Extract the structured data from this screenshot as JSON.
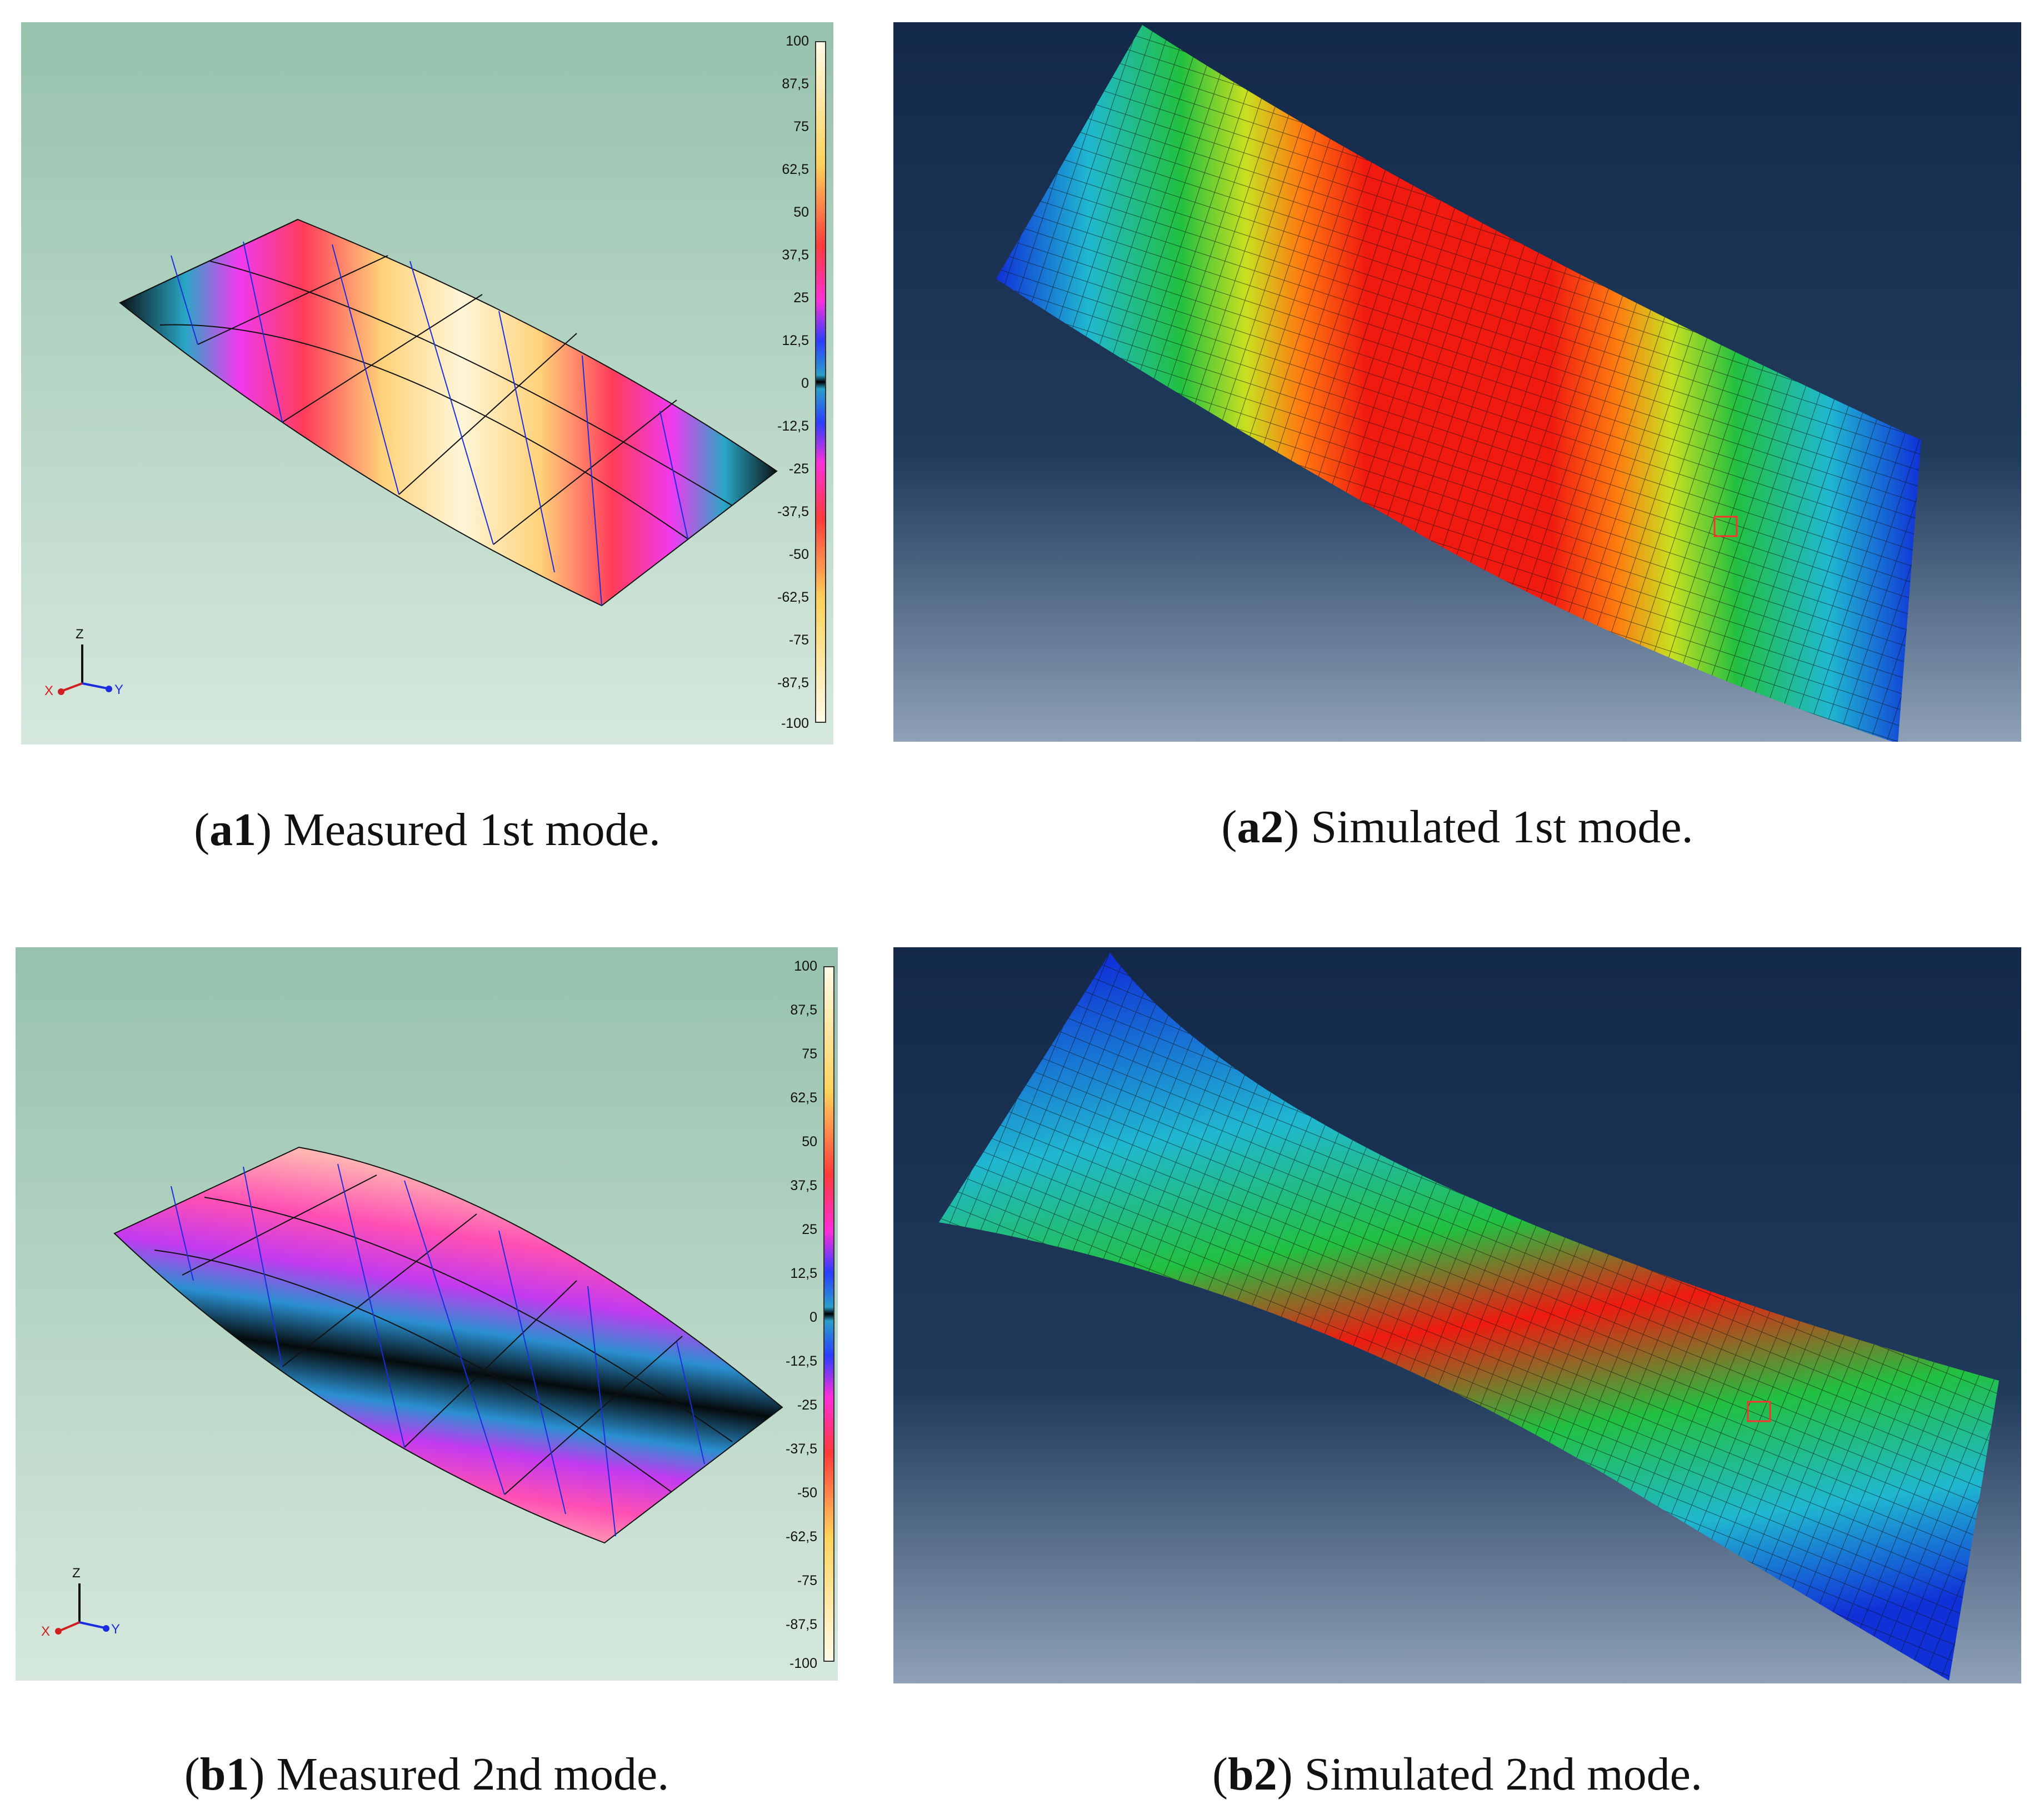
{
  "colorbar": {
    "ticks": [
      "100",
      "87,5",
      "75",
      "62,5",
      "50",
      "37,5",
      "25",
      "12,5",
      "0",
      "-12,5",
      "-25",
      "-37,5",
      "-50",
      "-62,5",
      "-75",
      "-87,5",
      "-100"
    ]
  },
  "axes": {
    "z": "Z",
    "x": "X",
    "y": "Y"
  },
  "panels": [
    {
      "id": "a1",
      "tag": "a1",
      "text": ") Measured 1st mode.",
      "open": "("
    },
    {
      "id": "a2",
      "tag": "a2",
      "text": ") Simulated 1st mode.",
      "open": "("
    },
    {
      "id": "b1",
      "tag": "b1",
      "text": ") Measured 2nd mode.",
      "open": "("
    },
    {
      "id": "b2",
      "tag": "b2",
      "text": ") Simulated 2nd mode.",
      "open": "("
    }
  ],
  "colors": {
    "measured_bg_top": "#97c2ad",
    "measured_bg_bottom": "#d5e8dc",
    "sim_bg_top": "#14294a",
    "sim_bg_bottom": "#8ea1b7"
  }
}
